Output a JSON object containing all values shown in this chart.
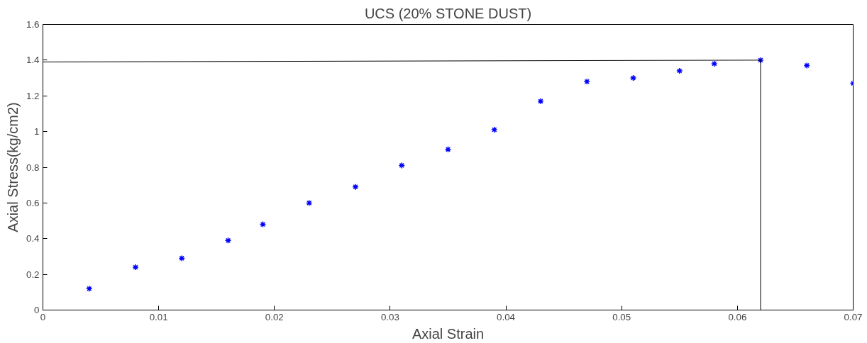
{
  "chart_data": {
    "type": "scatter",
    "title": "UCS (20% STONE DUST)",
    "xlabel": "Axial Strain",
    "ylabel": "Axial Stress(kg/cm2)",
    "xlim": [
      0,
      0.07
    ],
    "ylim": [
      0,
      1.6
    ],
    "xticks": [
      0,
      0.01,
      0.02,
      0.03,
      0.04,
      0.05,
      0.06,
      0.07
    ],
    "yticks": [
      0,
      0.2,
      0.4,
      0.6,
      0.8,
      1,
      1.2,
      1.4,
      1.6
    ],
    "grid": false,
    "marker": "cross",
    "series": [
      {
        "color": "#0000ff",
        "x": [
          0.004,
          0.008,
          0.012,
          0.016,
          0.019,
          0.023,
          0.027,
          0.031,
          0.035,
          0.039,
          0.043,
          0.047,
          0.051,
          0.055,
          0.058,
          0.062,
          0.066,
          0.07
        ],
        "values": [
          0.12,
          0.24,
          0.29,
          0.39,
          0.48,
          0.6,
          0.69,
          0.81,
          0.9,
          1.01,
          1.17,
          1.28,
          1.3,
          1.34,
          1.38,
          1.4,
          1.37,
          1.27
        ]
      },
      {
        "type": "line",
        "marker": "none",
        "color": "#000000",
        "x": [
          0,
          0.062,
          0.062
        ],
        "values": [
          1.39,
          1.4,
          0
        ]
      }
    ]
  }
}
